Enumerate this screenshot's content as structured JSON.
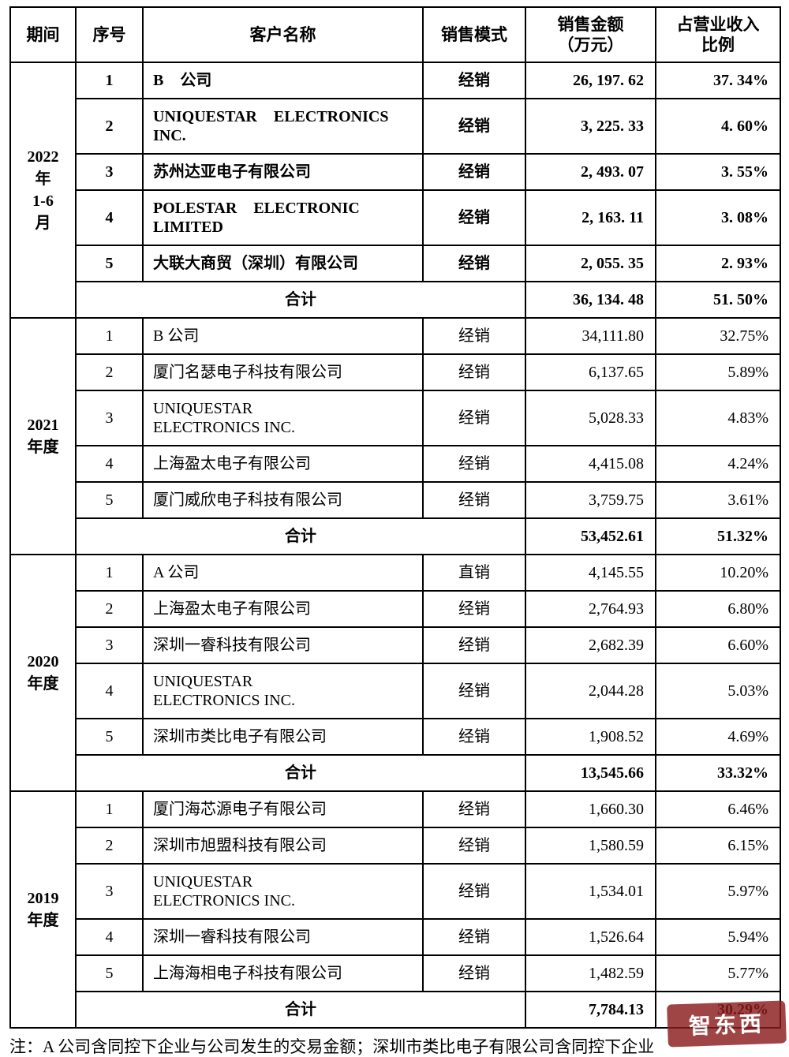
{
  "table": {
    "header": {
      "period": "期间",
      "index": "序号",
      "customer": "客户名称",
      "mode": "销售模式",
      "amount": "销售金额\n（万元）",
      "ratio": "占营业收入\n比例"
    },
    "sections": [
      {
        "period": "2022\n年\n1-6\n月",
        "bold": true,
        "rows": [
          {
            "index": "1",
            "customer": "B 公司",
            "mode": "经销",
            "amount": "26, 197. 62",
            "ratio": "37. 34%"
          },
          {
            "index": "2",
            "customer": "UNIQUESTAR ELECTRONICS\nINC.",
            "mode": "经销",
            "amount": "3, 225. 33",
            "ratio": "4. 60%"
          },
          {
            "index": "3",
            "customer": "苏州达亚电子有限公司",
            "mode": "经销",
            "amount": "2, 493. 07",
            "ratio": "3. 55%"
          },
          {
            "index": "4",
            "customer": "POLESTAR ELECTRONIC\nLIMITED",
            "mode": "经销",
            "amount": "2, 163. 11",
            "ratio": "3. 08%"
          },
          {
            "index": "5",
            "customer": "大联大商贸（深圳）有限公司",
            "mode": "经销",
            "amount": "2, 055. 35",
            "ratio": "2. 93%"
          }
        ],
        "total": {
          "label": "合计",
          "amount": "36, 134. 48",
          "ratio": "51. 50%"
        }
      },
      {
        "period": "2021\n年度",
        "bold": false,
        "rows": [
          {
            "index": "1",
            "customer": "B 公司",
            "mode": "经销",
            "amount": "34,111.80",
            "ratio": "32.75%"
          },
          {
            "index": "2",
            "customer": "厦门名瑟电子科技有限公司",
            "mode": "经销",
            "amount": "6,137.65",
            "ratio": "5.89%"
          },
          {
            "index": "3",
            "customer": "UNIQUESTAR\nELECTRONICS INC.",
            "mode": "经销",
            "amount": "5,028.33",
            "ratio": "4.83%"
          },
          {
            "index": "4",
            "customer": "上海盈太电子有限公司",
            "mode": "经销",
            "amount": "4,415.08",
            "ratio": "4.24%"
          },
          {
            "index": "5",
            "customer": "厦门威欣电子科技有限公司",
            "mode": "经销",
            "amount": "3,759.75",
            "ratio": "3.61%"
          }
        ],
        "total": {
          "label": "合计",
          "amount": "53,452.61",
          "ratio": "51.32%"
        }
      },
      {
        "period": "2020\n年度",
        "bold": false,
        "rows": [
          {
            "index": "1",
            "customer": "A 公司",
            "mode": "直销",
            "amount": "4,145.55",
            "ratio": "10.20%"
          },
          {
            "index": "2",
            "customer": "上海盈太电子有限公司",
            "mode": "经销",
            "amount": "2,764.93",
            "ratio": "6.80%"
          },
          {
            "index": "3",
            "customer": "深圳一睿科技有限公司",
            "mode": "经销",
            "amount": "2,682.39",
            "ratio": "6.60%"
          },
          {
            "index": "4",
            "customer": "UNIQUESTAR\nELECTRONICS INC.",
            "mode": "经销",
            "amount": "2,044.28",
            "ratio": "5.03%"
          },
          {
            "index": "5",
            "customer": "深圳市类比电子有限公司",
            "mode": "经销",
            "amount": "1,908.52",
            "ratio": "4.69%"
          }
        ],
        "total": {
          "label": "合计",
          "amount": "13,545.66",
          "ratio": "33.32%"
        }
      },
      {
        "period": "2019\n年度",
        "bold": false,
        "rows": [
          {
            "index": "1",
            "customer": "厦门海芯源电子有限公司",
            "mode": "经销",
            "amount": "1,660.30",
            "ratio": "6.46%"
          },
          {
            "index": "2",
            "customer": "深圳市旭盟科技有限公司",
            "mode": "经销",
            "amount": "1,580.59",
            "ratio": "6.15%"
          },
          {
            "index": "3",
            "customer": "UNIQUESTAR\nELECTRONICS INC.",
            "mode": "经销",
            "amount": "1,534.01",
            "ratio": "5.97%"
          },
          {
            "index": "4",
            "customer": "深圳一睿科技有限公司",
            "mode": "经销",
            "amount": "1,526.64",
            "ratio": "5.94%"
          },
          {
            "index": "5",
            "customer": "上海海相电子科技有限公司",
            "mode": "经销",
            "amount": "1,482.59",
            "ratio": "5.77%"
          }
        ],
        "total": {
          "label": "合计",
          "amount": "7,784.13",
          "ratio": "30.29%"
        }
      }
    ]
  },
  "note": "注：A 公司含同控下企业与公司发生的交易金额；深圳市类比电子有限公司含同控下企业",
  "watermark": {
    "text": "智东西",
    "color": "#8c1d1d"
  }
}
